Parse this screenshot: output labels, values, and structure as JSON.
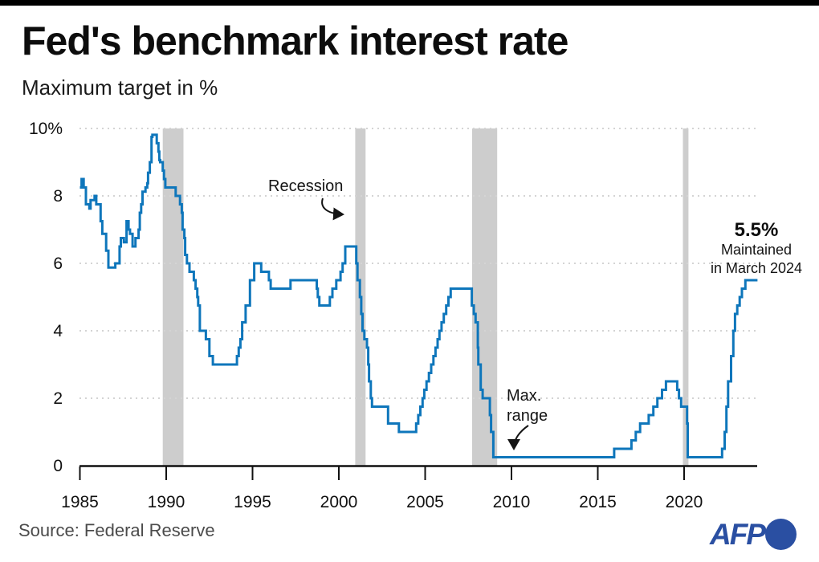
{
  "page": {
    "title": "Fed's benchmark interest rate",
    "subtitle": "Maximum target in %",
    "source": "Source: Federal Reserve",
    "logo_text": "AFP"
  },
  "colors": {
    "line": "#0e76bb",
    "recession_band": "#cdcdcd",
    "gridline": "#d4d4d4",
    "axis": "#111111",
    "afp_blue": "#2a4fa2",
    "top_bar": "#000000"
  },
  "chart_data": {
    "type": "line",
    "step": "after",
    "title": "Fed's benchmark interest rate",
    "ylabel": "Maximum target in %",
    "grid": "dotted horizontal",
    "legend": "none",
    "x_axis": {
      "range": [
        1985,
        2024.25
      ],
      "ticks": [
        1985,
        1990,
        1995,
        2000,
        2005,
        2010,
        2015,
        2020
      ]
    },
    "y_axis": {
      "range": [
        0,
        10
      ],
      "gridlines": [
        2,
        4,
        6,
        8,
        10
      ],
      "ticks": [
        {
          "v": 0,
          "label": "0"
        },
        {
          "v": 2,
          "label": "2"
        },
        {
          "v": 4,
          "label": "4"
        },
        {
          "v": 6,
          "label": "6"
        },
        {
          "v": 8,
          "label": "8"
        },
        {
          "v": 10,
          "label": "10%"
        }
      ]
    },
    "series": [
      {
        "name": "Fed benchmark interest rate, maximum target (%)",
        "points": [
          [
            1985.0,
            8.25
          ],
          [
            1985.1,
            8.5
          ],
          [
            1985.22,
            8.25
          ],
          [
            1985.35,
            7.75
          ],
          [
            1985.55,
            7.625
          ],
          [
            1985.62,
            7.875
          ],
          [
            1985.85,
            8.0
          ],
          [
            1985.95,
            7.75
          ],
          [
            1986.2,
            7.25
          ],
          [
            1986.3,
            6.875
          ],
          [
            1986.52,
            6.375
          ],
          [
            1986.65,
            5.875
          ],
          [
            1987.05,
            6.0
          ],
          [
            1987.3,
            6.5
          ],
          [
            1987.37,
            6.75
          ],
          [
            1987.55,
            6.625
          ],
          [
            1987.7,
            7.25
          ],
          [
            1987.82,
            7.0
          ],
          [
            1987.9,
            6.875
          ],
          [
            1988.05,
            6.5
          ],
          [
            1988.22,
            6.75
          ],
          [
            1988.4,
            7.0
          ],
          [
            1988.47,
            7.5
          ],
          [
            1988.55,
            7.75
          ],
          [
            1988.63,
            8.125
          ],
          [
            1988.8,
            8.25
          ],
          [
            1988.9,
            8.375
          ],
          [
            1988.95,
            8.6875
          ],
          [
            1989.05,
            9.0
          ],
          [
            1989.15,
            9.75
          ],
          [
            1989.2,
            9.8125
          ],
          [
            1989.45,
            9.5625
          ],
          [
            1989.55,
            9.3125
          ],
          [
            1989.6,
            9.0625
          ],
          [
            1989.65,
            9.0
          ],
          [
            1989.8,
            8.75
          ],
          [
            1989.87,
            8.5
          ],
          [
            1989.95,
            8.25
          ],
          [
            1990.55,
            8.0
          ],
          [
            1990.8,
            7.75
          ],
          [
            1990.9,
            7.5
          ],
          [
            1990.95,
            7.0
          ],
          [
            1991.05,
            6.75
          ],
          [
            1991.1,
            6.25
          ],
          [
            1991.2,
            6.0
          ],
          [
            1991.35,
            5.75
          ],
          [
            1991.6,
            5.5
          ],
          [
            1991.7,
            5.25
          ],
          [
            1991.8,
            5.0
          ],
          [
            1991.85,
            4.75
          ],
          [
            1991.95,
            4.0
          ],
          [
            1992.3,
            3.75
          ],
          [
            1992.5,
            3.25
          ],
          [
            1992.7,
            3.0
          ],
          [
            1994.1,
            3.25
          ],
          [
            1994.2,
            3.5
          ],
          [
            1994.3,
            3.75
          ],
          [
            1994.4,
            4.25
          ],
          [
            1994.6,
            4.75
          ],
          [
            1994.85,
            5.5
          ],
          [
            1995.1,
            6.0
          ],
          [
            1995.5,
            5.75
          ],
          [
            1995.95,
            5.5
          ],
          [
            1996.05,
            5.25
          ],
          [
            1997.2,
            5.5
          ],
          [
            1998.72,
            5.25
          ],
          [
            1998.78,
            5.0
          ],
          [
            1998.87,
            4.75
          ],
          [
            1999.48,
            5.0
          ],
          [
            1999.63,
            5.25
          ],
          [
            1999.85,
            5.5
          ],
          [
            2000.1,
            5.75
          ],
          [
            2000.22,
            6.0
          ],
          [
            2000.37,
            6.5
          ],
          [
            2001.01,
            6.0
          ],
          [
            2001.08,
            5.5
          ],
          [
            2001.22,
            5.0
          ],
          [
            2001.3,
            4.5
          ],
          [
            2001.37,
            4.0
          ],
          [
            2001.48,
            3.75
          ],
          [
            2001.63,
            3.5
          ],
          [
            2001.7,
            3.0
          ],
          [
            2001.75,
            2.5
          ],
          [
            2001.85,
            2.0
          ],
          [
            2001.92,
            1.75
          ],
          [
            2002.85,
            1.25
          ],
          [
            2003.48,
            1.0
          ],
          [
            2004.48,
            1.25
          ],
          [
            2004.6,
            1.5
          ],
          [
            2004.72,
            1.75
          ],
          [
            2004.85,
            2.0
          ],
          [
            2004.95,
            2.25
          ],
          [
            2005.08,
            2.5
          ],
          [
            2005.22,
            2.75
          ],
          [
            2005.35,
            3.0
          ],
          [
            2005.48,
            3.25
          ],
          [
            2005.6,
            3.5
          ],
          [
            2005.72,
            3.75
          ],
          [
            2005.83,
            4.0
          ],
          [
            2005.95,
            4.25
          ],
          [
            2006.08,
            4.5
          ],
          [
            2006.22,
            4.75
          ],
          [
            2006.35,
            5.0
          ],
          [
            2006.48,
            5.25
          ],
          [
            2007.7,
            4.75
          ],
          [
            2007.82,
            4.5
          ],
          [
            2007.92,
            4.25
          ],
          [
            2008.05,
            3.5
          ],
          [
            2008.08,
            3.0
          ],
          [
            2008.22,
            2.25
          ],
          [
            2008.33,
            2.0
          ],
          [
            2008.75,
            1.5
          ],
          [
            2008.82,
            1.0
          ],
          [
            2008.95,
            0.25
          ],
          [
            2015.95,
            0.5
          ],
          [
            2016.95,
            0.75
          ],
          [
            2017.2,
            1.0
          ],
          [
            2017.45,
            1.25
          ],
          [
            2017.95,
            1.5
          ],
          [
            2018.22,
            1.75
          ],
          [
            2018.45,
            2.0
          ],
          [
            2018.72,
            2.25
          ],
          [
            2018.95,
            2.5
          ],
          [
            2019.6,
            2.25
          ],
          [
            2019.7,
            2.0
          ],
          [
            2019.83,
            1.75
          ],
          [
            2020.17,
            1.25
          ],
          [
            2020.21,
            0.25
          ],
          [
            2022.2,
            0.5
          ],
          [
            2022.35,
            1.0
          ],
          [
            2022.45,
            1.75
          ],
          [
            2022.55,
            2.5
          ],
          [
            2022.72,
            3.25
          ],
          [
            2022.85,
            4.0
          ],
          [
            2022.95,
            4.5
          ],
          [
            2023.08,
            4.75
          ],
          [
            2023.22,
            5.0
          ],
          [
            2023.35,
            5.25
          ],
          [
            2023.55,
            5.5
          ]
        ]
      }
    ],
    "recession_bands": {
      "label": "Recession",
      "ranges": [
        [
          1989.8,
          1991.0
        ],
        [
          2000.95,
          2001.55
        ],
        [
          2007.72,
          2009.17
        ],
        [
          2019.93,
          2020.25
        ]
      ]
    },
    "annotations": {
      "recession": {
        "text": "Recession"
      },
      "max_range": {
        "line1": "Max.",
        "line2": "range"
      },
      "latest": {
        "value": "5.5%",
        "line1": "Maintained",
        "line2": "in March 2024"
      }
    }
  }
}
